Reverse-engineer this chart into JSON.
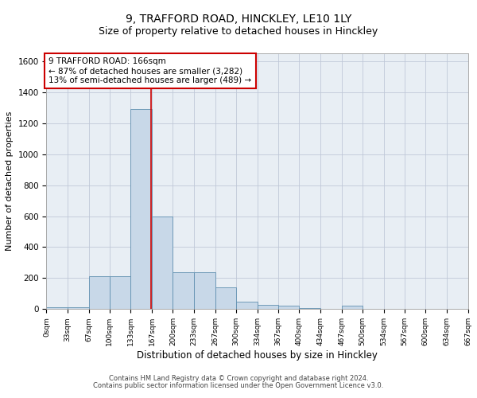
{
  "title_line1": "9, TRAFFORD ROAD, HINCKLEY, LE10 1LY",
  "title_line2": "Size of property relative to detached houses in Hinckley",
  "xlabel": "Distribution of detached houses by size in Hinckley",
  "ylabel": "Number of detached properties",
  "footnote1": "Contains HM Land Registry data © Crown copyright and database right 2024.",
  "footnote2": "Contains public sector information licensed under the Open Government Licence v3.0.",
  "annotation_line1": "9 TRAFFORD ROAD: 166sqm",
  "annotation_line2": "← 87% of detached houses are smaller (3,282)",
  "annotation_line3": "13% of semi-detached houses are larger (489) →",
  "property_size": 166,
  "bin_edges": [
    0,
    33,
    67,
    100,
    133,
    167,
    200,
    233,
    267,
    300,
    334,
    367,
    400,
    434,
    467,
    500,
    534,
    567,
    600,
    634,
    667
  ],
  "bar_heights": [
    10,
    10,
    215,
    215,
    1290,
    600,
    240,
    240,
    140,
    50,
    28,
    25,
    5,
    0,
    25,
    0,
    0,
    0,
    0,
    0
  ],
  "bar_color": "#c8d8e8",
  "bar_edge_color": "#6090b0",
  "vline_color": "#cc0000",
  "vline_x": 166,
  "grid_color": "#c0c8d8",
  "background_color": "#e8eef4",
  "annotation_box_color": "#cc0000",
  "ylim": [
    0,
    1650
  ],
  "yticks": [
    0,
    200,
    400,
    600,
    800,
    1000,
    1200,
    1400,
    1600
  ],
  "title1_fontsize": 10,
  "title2_fontsize": 9,
  "xlabel_fontsize": 8.5,
  "ylabel_fontsize": 8,
  "tick_fontsize": 7.5,
  "xtick_fontsize": 6.5,
  "footnote_fontsize": 6,
  "annotation_fontsize": 7.5
}
